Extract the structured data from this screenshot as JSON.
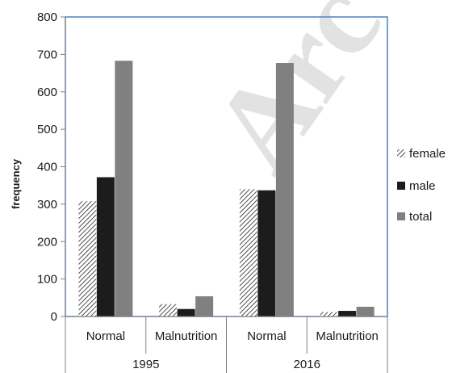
{
  "chart_data": {
    "type": "bar",
    "watermark": "Arc",
    "ylabel": "frequency",
    "xlabel": "",
    "ylim": [
      0,
      800
    ],
    "yticks": [
      0,
      100,
      200,
      300,
      400,
      500,
      600,
      700,
      800
    ],
    "ytick_labels": [
      "0",
      "100",
      "200",
      "300",
      "400",
      "500",
      "600",
      "700",
      "800"
    ],
    "grid": false,
    "legend_position": "right",
    "groups": [
      {
        "label": "1995",
        "categories": [
          "Normal",
          "Malnutrition"
        ]
      },
      {
        "label": "2016",
        "categories": [
          "Normal",
          "Malnutrition"
        ]
      }
    ],
    "categories": [
      "Normal",
      "Malnutrition",
      "Normal",
      "Malnutrition"
    ],
    "series": [
      {
        "name": "female",
        "values": [
          308,
          33,
          340,
          12
        ],
        "style": "hatched"
      },
      {
        "name": "male",
        "values": [
          372,
          20,
          337,
          15
        ],
        "color": "#1c1c1c"
      },
      {
        "name": "total",
        "values": [
          683,
          54,
          677,
          26
        ],
        "color": "#808080"
      }
    ],
    "plot_border_color": "#4f81bd"
  }
}
